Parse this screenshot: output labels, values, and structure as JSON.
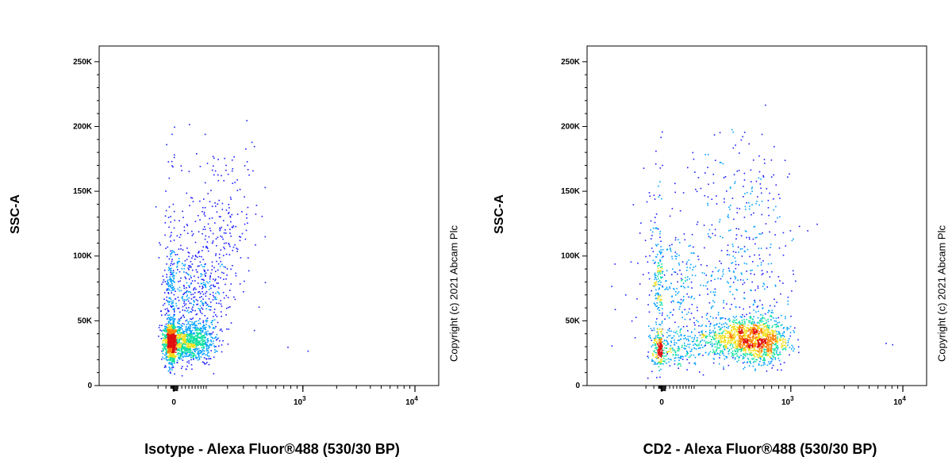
{
  "colors": {
    "density": [
      "#1a1aff",
      "#00a0ff",
      "#10e0a0",
      "#f0e020",
      "#ff8000",
      "#e01010"
    ]
  },
  "panels": [
    {
      "ylabel": "SSC-A",
      "xlabel": "Isotype - Alexa Fluor®488 (530/30 BP)",
      "copyright": "Copyright (c) 2021 Abcam Plc"
    },
    {
      "ylabel": "SSC-A",
      "xlabel": "CD2 - Alexa Fluor®488 (530/30 BP)",
      "copyright": "Copyright (c) 2021 Abcam Plc"
    }
  ],
  "chart_data": [
    {
      "type": "scatter",
      "xlabel": "Isotype - Alexa Fluor®488 (530/30 BP)",
      "ylabel": "SSC-A",
      "x_scale": "biexponential",
      "x_tick_labels": [
        "0",
        "10^3",
        "10^4"
      ],
      "y_tick_labels": [
        "0",
        "50K",
        "100K",
        "150K",
        "200K",
        "250K"
      ],
      "ylim": [
        0,
        262144
      ],
      "populations": [
        {
          "x_center": 0,
          "y_center": 33000,
          "count": 1800,
          "x_spread": 60,
          "y_spread": 9000
        },
        {
          "x_center": 40,
          "y_center": 70000,
          "count": 600,
          "x_spread": 80,
          "y_spread": 25000
        },
        {
          "x_center": 150,
          "y_center": 130000,
          "count": 200,
          "x_spread": 120,
          "y_spread": 35000
        }
      ],
      "points": [
        {
          "x": 0,
          "y": 200000
        },
        {
          "x": 40,
          "y": 202000
        },
        {
          "x": 320,
          "y": 205000
        },
        {
          "x": 480,
          "y": 80000
        },
        {
          "x": 420,
          "y": 61000
        },
        {
          "x": 380,
          "y": 43000
        },
        {
          "x": 750,
          "y": 30000
        },
        {
          "x": 1100,
          "y": 27000
        },
        {
          "x": 380,
          "y": 185000
        }
      ]
    },
    {
      "type": "scatter",
      "xlabel": "CD2 - Alexa Fluor®488 (530/30 BP)",
      "ylabel": "SSC-A",
      "x_scale": "biexponential",
      "x_tick_labels": [
        "0",
        "10^3",
        "10^4"
      ],
      "y_tick_labels": [
        "0",
        "50K",
        "100K",
        "150K",
        "200K",
        "250K"
      ],
      "ylim": [
        0,
        262144
      ],
      "populations": [
        {
          "x_center": -10,
          "y_center": 27000,
          "count": 300,
          "x_spread": 60,
          "y_spread": 8000
        },
        {
          "x_center": 0,
          "y_center": 75000,
          "count": 220,
          "x_spread": 60,
          "y_spread": 20000
        },
        {
          "x_center": 450,
          "y_center": 35000,
          "count": 1500,
          "x_spread": 220,
          "y_spread": 10000
        },
        {
          "x_center": 300,
          "y_center": 85000,
          "count": 400,
          "x_spread": 300,
          "y_spread": 40000
        },
        {
          "x_center": 350,
          "y_center": 150000,
          "count": 120,
          "x_spread": 250,
          "y_spread": 30000
        }
      ],
      "points": [
        {
          "x": 300,
          "y": 198000
        },
        {
          "x": 400,
          "y": 196000
        },
        {
          "x": 600,
          "y": 175000
        },
        {
          "x": 1700,
          "y": 125000
        },
        {
          "x": 1400,
          "y": 120000
        },
        {
          "x": 7000,
          "y": 33000
        },
        {
          "x": 8000,
          "y": 32000
        }
      ]
    }
  ]
}
